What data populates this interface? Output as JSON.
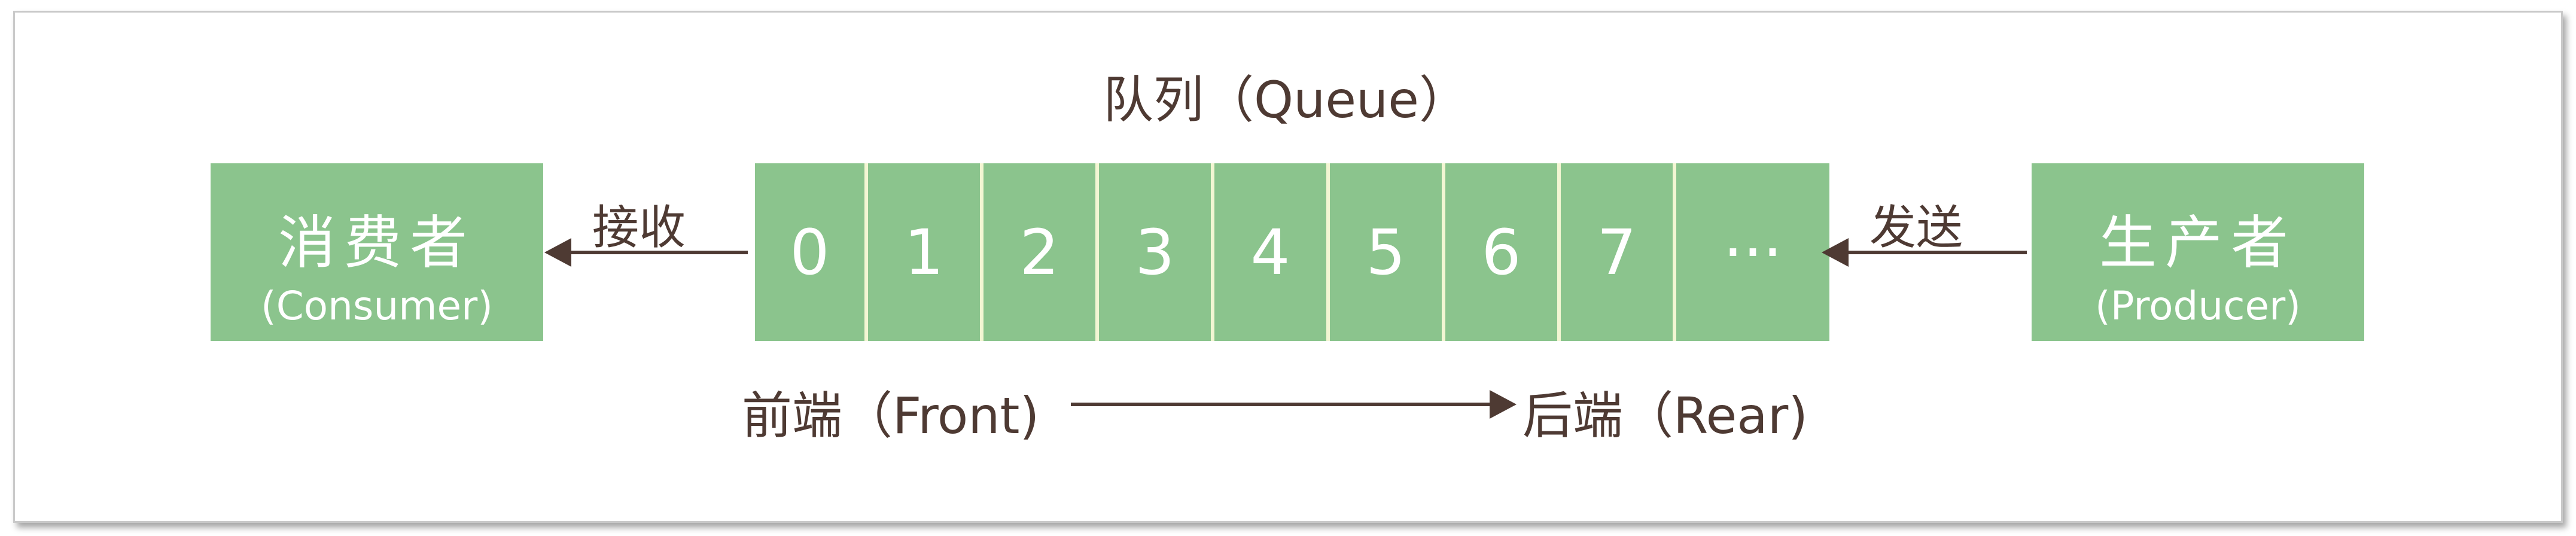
{
  "title": "队列（Queue）",
  "consumer": {
    "name": "消费者",
    "english": "(Consumer)"
  },
  "producer": {
    "name": "生产者",
    "english": "(Producer)"
  },
  "queue_cells": [
    "0",
    "1",
    "2",
    "3",
    "4",
    "5",
    "6",
    "7",
    "···"
  ],
  "receive_label": "接收",
  "send_label": "发送",
  "front_label": "前端（Front)",
  "rear_label": "后端（Rear)",
  "colors": {
    "box_fill": "#8bc48d",
    "cell_divider": "#f3f6d3",
    "text_dark": "#4e3a33",
    "text_light": "#ffffff"
  }
}
